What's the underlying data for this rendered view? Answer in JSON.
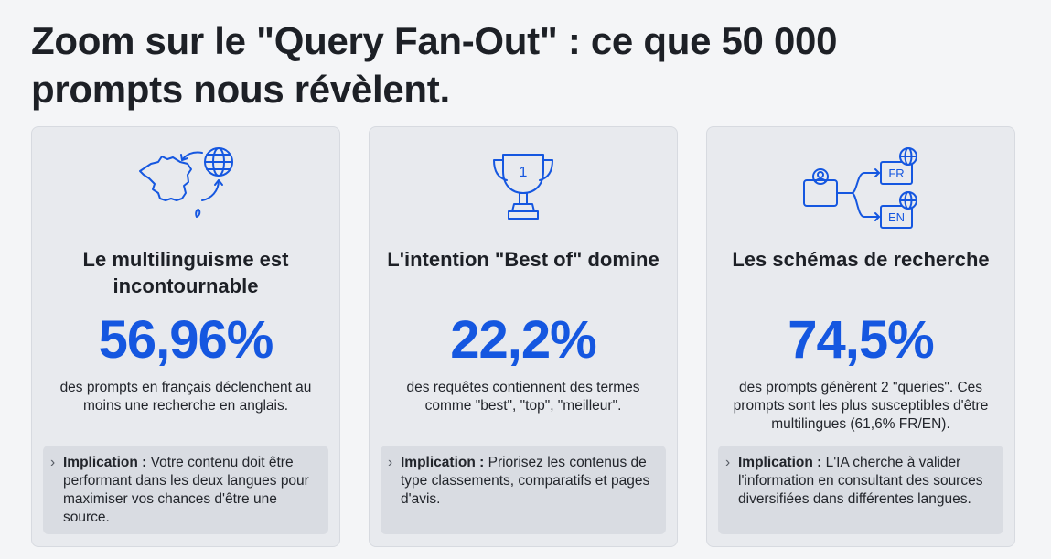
{
  "title": "Zoom sur le \"Query Fan-Out\" : ce que 50 000 prompts nous révèlent.",
  "accent_color": "#1557e0",
  "cards": [
    {
      "icon": "france-globe-icon",
      "title": "Le multilinguisme est incontournable",
      "stat": "56,96%",
      "description": "des prompts en français déclenchent au moins une recherche en anglais.",
      "implication_label": "Implication :",
      "implication_text": " Votre contenu doit être performant dans les deux langues pour maximiser vos chances d'être une source."
    },
    {
      "icon": "trophy-icon",
      "trophy_number": "1",
      "title": "L'intention \"Best of\" domine",
      "stat": "22,2%",
      "description": "des requêtes contiennent des termes comme \"best\", \"top\", \"meilleur\".",
      "implication_label": "Implication :",
      "implication_text": " Priorisez les contenus de type classements, comparatifs et pages d'avis."
    },
    {
      "icon": "user-branching-languages-icon",
      "lang_1": "FR",
      "lang_2": "EN",
      "title": "Les schémas de recherche",
      "stat": "74,5%",
      "description": "des prompts génèrent 2 \"queries\". Ces prompts sont les plus susceptibles d'être multilingues (61,6% FR/EN).",
      "implication_label": "Implication :",
      "implication_text": " L'IA cherche à valider l'information en consultant des sources diversifiées dans différentes langues."
    }
  ]
}
